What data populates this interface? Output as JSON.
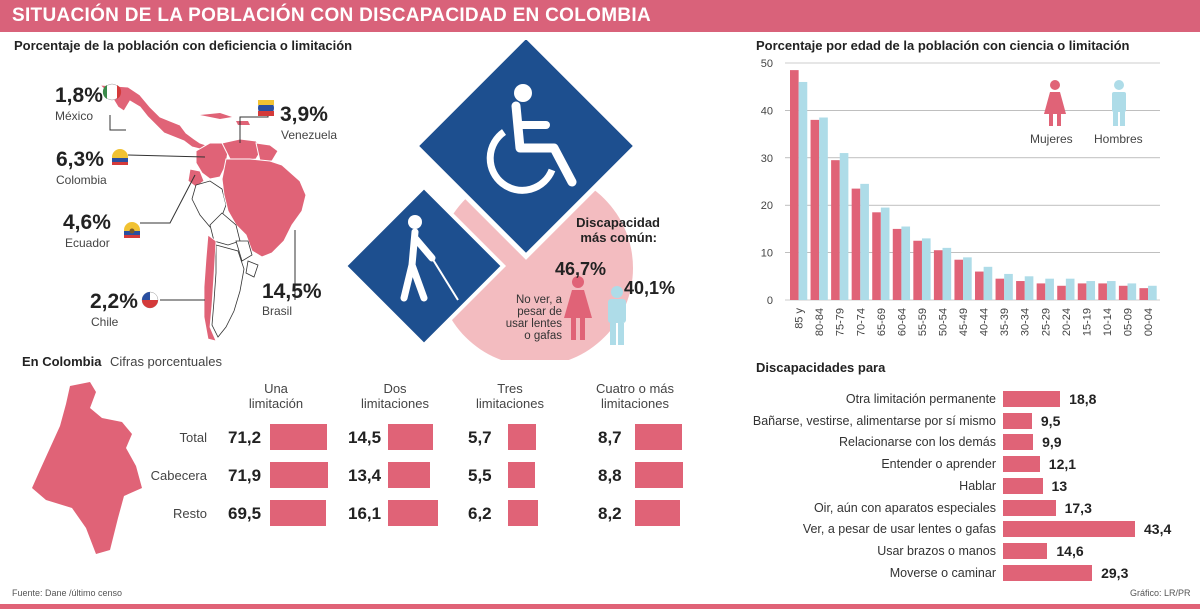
{
  "title": "SITUACIÓN DE LA POBLACIÓN CON DISCAPACIDAD EN COLOMBIA",
  "map_section": {
    "title": "Porcentaje de la población con deficiencia o limitación",
    "countries": [
      {
        "name": "México",
        "value": "1,8%"
      },
      {
        "name": "Venezuela",
        "value": "3,9%"
      },
      {
        "name": "Colombia",
        "value": "6,3%"
      },
      {
        "name": "Ecuador",
        "value": "4,6%"
      },
      {
        "name": "Chile",
        "value": "2,2%"
      },
      {
        "name": "Brasil",
        "value": "14,5%"
      }
    ]
  },
  "common_disability": {
    "title_line1": "Discapacidad",
    "title_line2": "más común:",
    "description": [
      "No ver, a",
      "pesar de",
      "usar lentes",
      "o gafas"
    ],
    "women_value": "46,7%",
    "men_value": "40,1%"
  },
  "colombia_table": {
    "title": "En Colombia",
    "subtitle": "Cifras porcentuales",
    "columns": [
      {
        "line1": "Una",
        "line2": "limitación"
      },
      {
        "line1": "Dos",
        "line2": "limitaciones"
      },
      {
        "line1": "Tres",
        "line2": "limitaciones"
      },
      {
        "line1": "Cuatro o más",
        "line2": "limitaciones"
      }
    ],
    "rows": [
      {
        "label": "Total",
        "values": [
          "71,2",
          "14,5",
          "5,7",
          "8,7"
        ]
      },
      {
        "label": "Cabecera",
        "values": [
          "71,9",
          "13,4",
          "5,5",
          "8,8"
        ]
      },
      {
        "label": "Resto",
        "values": [
          "69,5",
          "16,1",
          "6,2",
          "8,2"
        ]
      }
    ]
  },
  "footer": {
    "source": "Fuente: Dane /último censo",
    "credit": "Gráfico: LR/PR"
  },
  "colors": {
    "accent": "#e06377",
    "women": "#e06377",
    "men": "#aedce8",
    "sign_blue": "#1d4f8f",
    "circle": "#f3bcc0"
  },
  "chart_data": [
    {
      "type": "bar",
      "title": "Porcentaje por edad de la población con ciencia o limitación",
      "categories": [
        "85 y",
        "80-84",
        "75-79",
        "70-74",
        "65-69",
        "60-64",
        "55-59",
        "50-54",
        "45-49",
        "40-44",
        "35-39",
        "30-34",
        "25-29",
        "20-24",
        "15-19",
        "10-14",
        "05-09",
        "00-04"
      ],
      "series": [
        {
          "name": "Mujeres",
          "values": [
            48.5,
            38,
            29.5,
            23.5,
            18.5,
            15,
            12.5,
            10.5,
            8.5,
            6,
            4.5,
            4,
            3.5,
            3,
            3.5,
            3.5,
            3,
            2.5
          ]
        },
        {
          "name": "Hombres",
          "values": [
            46,
            38.5,
            31,
            24.5,
            19.5,
            15.5,
            13,
            11,
            9,
            7,
            5.5,
            5,
            4.5,
            4.5,
            4,
            4,
            3.5,
            3
          ]
        }
      ],
      "yticks": [
        "0",
        "10",
        "20",
        "30",
        "40",
        "50"
      ],
      "ylim": [
        0,
        50
      ],
      "legend": [
        "Mujeres",
        "Hombres"
      ],
      "legend_position": "top-right",
      "grid": true
    },
    {
      "type": "bar",
      "orientation": "horizontal",
      "title": "Discapacidades para",
      "categories": [
        "Otra limitación permanente",
        "Bañarse, vestirse, alimentarse por sí mismo",
        "Relacionarse con los demás",
        "Entender o aprender",
        "Hablar",
        "Oir, aún con aparatos especiales",
        "Ver, a pesar de usar lentes o gafas",
        "Usar brazos o manos",
        "Moverse o caminar"
      ],
      "values": [
        18.8,
        9.5,
        9.9,
        12.1,
        13,
        17.3,
        43.4,
        14.6,
        29.3
      ],
      "labels": [
        "18,8",
        "9,5",
        "9,9",
        "12,1",
        "13",
        "17,3",
        "43,4",
        "14,6",
        "29,3"
      ]
    }
  ]
}
